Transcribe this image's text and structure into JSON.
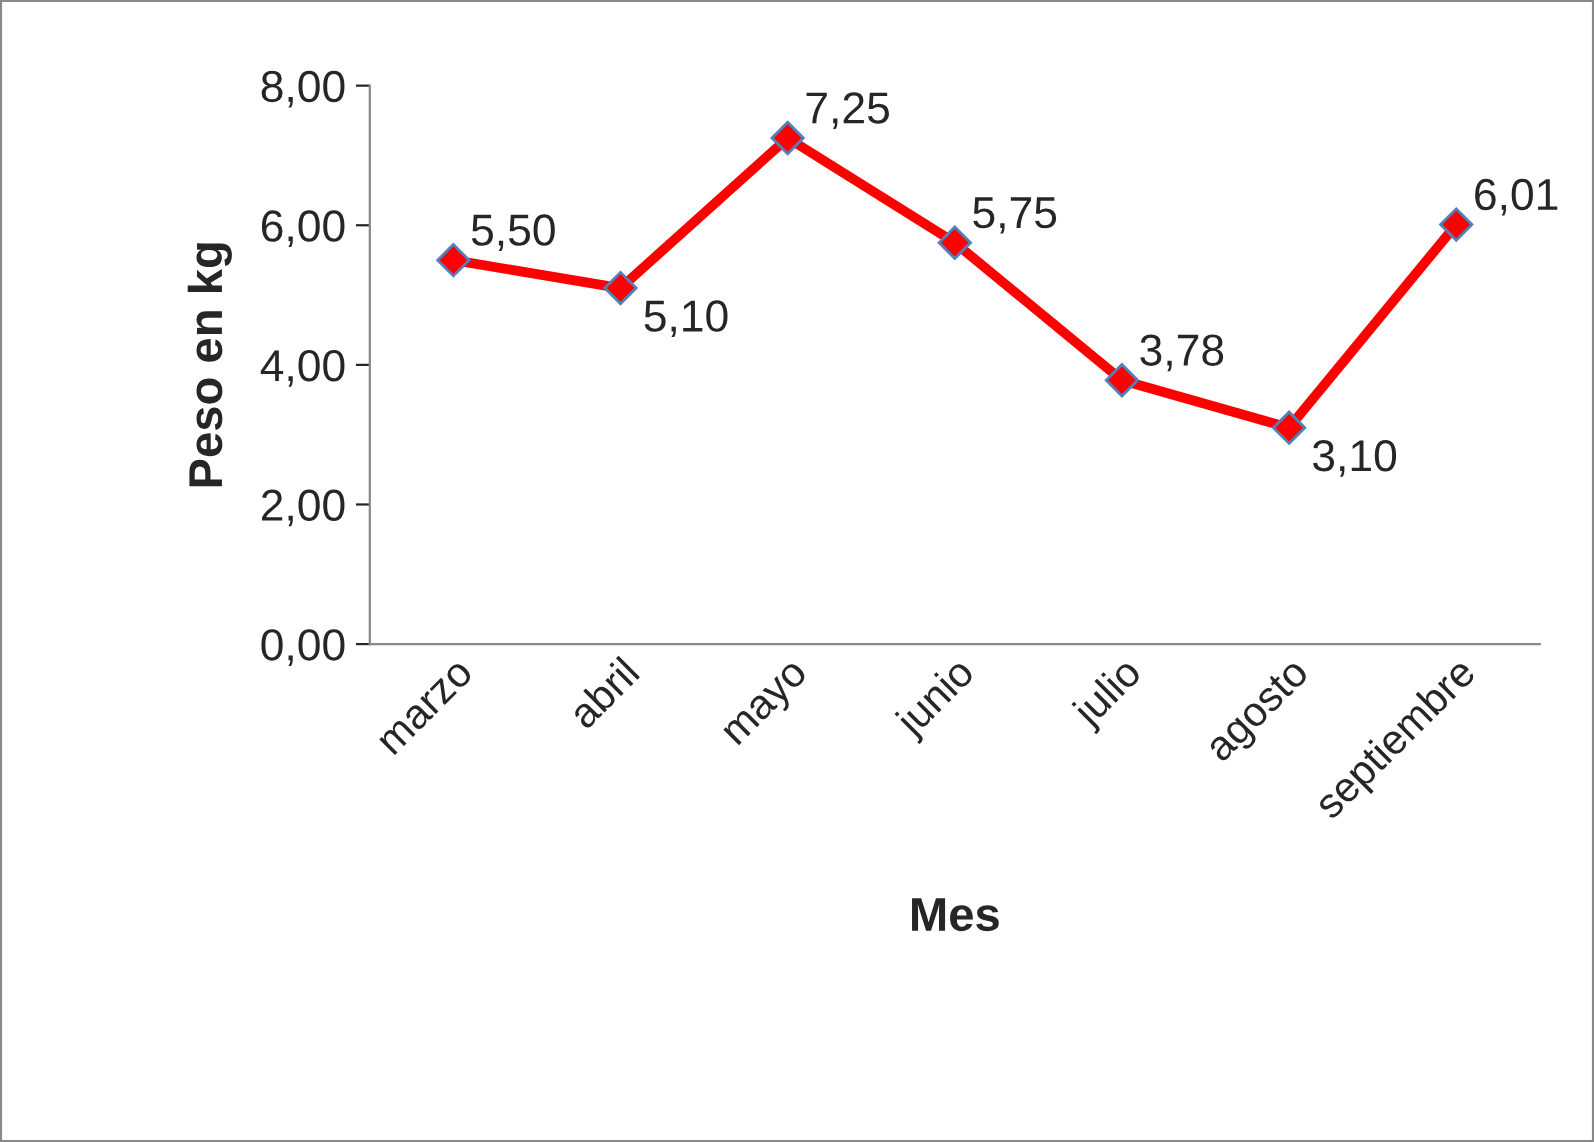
{
  "chart_data": {
    "type": "line",
    "xlabel": "Mes",
    "ylabel": "Peso en kg",
    "categories": [
      "marzo",
      "abril",
      "mayo",
      "junio",
      "julio",
      "agosto",
      "septiembre"
    ],
    "series": [
      {
        "color": "#ff0000",
        "values": [
          5.5,
          5.1,
          7.25,
          5.75,
          3.78,
          3.1,
          6.01
        ],
        "value_labels": [
          "5,50",
          "5,10",
          "7,25",
          "5,75",
          "3,78",
          "3,10",
          "6,01"
        ]
      }
    ],
    "ylim": [
      0,
      8
    ],
    "yticks": [
      {
        "value": 0,
        "label": "0,00"
      },
      {
        "value": 2,
        "label": "2,00"
      },
      {
        "value": 4,
        "label": "4,00"
      },
      {
        "value": 6,
        "label": "6,00"
      },
      {
        "value": 8,
        "label": "8,00"
      }
    ],
    "marker": "diamond",
    "line_style": "solid",
    "grid": false,
    "legend": false
  }
}
